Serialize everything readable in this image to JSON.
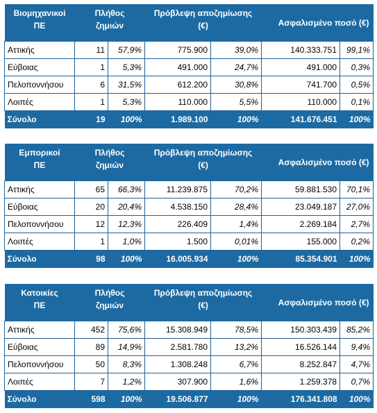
{
  "headers": {
    "count": "Πλήθος ζημιών",
    "provision": "Πρόβλεψη αποζημίωσης (€)",
    "insured": "Ασφαλισμένο ποσό (€)"
  },
  "tables": [
    {
      "category": "Βιομηχανικοί ΠΕ",
      "rows": [
        {
          "region": "Αττικής",
          "count": "11",
          "count_pct": "57,9%",
          "provision": "775.900",
          "provision_pct": "39,0%",
          "insured": "140.333.751",
          "insured_pct": "99,1%"
        },
        {
          "region": "Εύβοιας",
          "count": "1",
          "count_pct": "5,3%",
          "provision": "491.000",
          "provision_pct": "24,7%",
          "insured": "491.000",
          "insured_pct": "0,3%"
        },
        {
          "region": "Πελοποννήσου",
          "count": "6",
          "count_pct": "31,5%",
          "provision": "612.200",
          "provision_pct": "30,8%",
          "insured": "741.700",
          "insured_pct": "0,5%"
        },
        {
          "region": "Λοιπές",
          "count": "1",
          "count_pct": "5,3%",
          "provision": "110.000",
          "provision_pct": "5,5%",
          "insured": "110.000",
          "insured_pct": "0,1%"
        }
      ],
      "total": {
        "region": "Σύνολο",
        "count": "19",
        "count_pct": "100%",
        "provision": "1.989.100",
        "provision_pct": "100%",
        "insured": "141.676.451",
        "insured_pct": "100%"
      }
    },
    {
      "category": "Εμπορικοί ΠΕ",
      "rows": [
        {
          "region": "Αττικής",
          "count": "65",
          "count_pct": "66,3%",
          "provision": "11.239.875",
          "provision_pct": "70,2%",
          "insured": "59.881.530",
          "insured_pct": "70,1%"
        },
        {
          "region": "Εύβοιας",
          "count": "20",
          "count_pct": "20,4%",
          "provision": "4.538.150",
          "provision_pct": "28,4%",
          "insured": "23.049.187",
          "insured_pct": "27,0%"
        },
        {
          "region": "Πελοποννήσου",
          "count": "12",
          "count_pct": "12,3%",
          "provision": "226.409",
          "provision_pct": "1,4%",
          "insured": "2.269.184",
          "insured_pct": "2,7%"
        },
        {
          "region": "Λοιπές",
          "count": "1",
          "count_pct": "1,0%",
          "provision": "1.500",
          "provision_pct": "0,01%",
          "insured": "155.000",
          "insured_pct": "0,2%"
        }
      ],
      "total": {
        "region": "Σύνολο",
        "count": "98",
        "count_pct": "100%",
        "provision": "16.005.934",
        "provision_pct": "100%",
        "insured": "85.354.901",
        "insured_pct": "100%"
      }
    },
    {
      "category": "Κατοικίες ΠΕ",
      "rows": [
        {
          "region": "Αττικής",
          "count": "452",
          "count_pct": "75,6%",
          "provision": "15.308.949",
          "provision_pct": "78,5%",
          "insured": "150.303.439",
          "insured_pct": "85,2%"
        },
        {
          "region": "Εύβοιας",
          "count": "89",
          "count_pct": "14,9%",
          "provision": "2.581.780",
          "provision_pct": "13,2%",
          "insured": "16.526.144",
          "insured_pct": "9,4%"
        },
        {
          "region": "Πελοποννήσου",
          "count": "50",
          "count_pct": "8,3%",
          "provision": "1.308.248",
          "provision_pct": "6,7%",
          "insured": "8.252.847",
          "insured_pct": "4,7%"
        },
        {
          "region": "Λοιπές",
          "count": "7",
          "count_pct": "1,2%",
          "provision": "307.900",
          "provision_pct": "1,6%",
          "insured": "1.259.378",
          "insured_pct": "0,7%"
        }
      ],
      "total": {
        "region": "Σύνολο",
        "count": "598",
        "count_pct": "100%",
        "provision": "19.506.877",
        "provision_pct": "100%",
        "insured": "176.341.808",
        "insured_pct": "100%"
      }
    }
  ]
}
